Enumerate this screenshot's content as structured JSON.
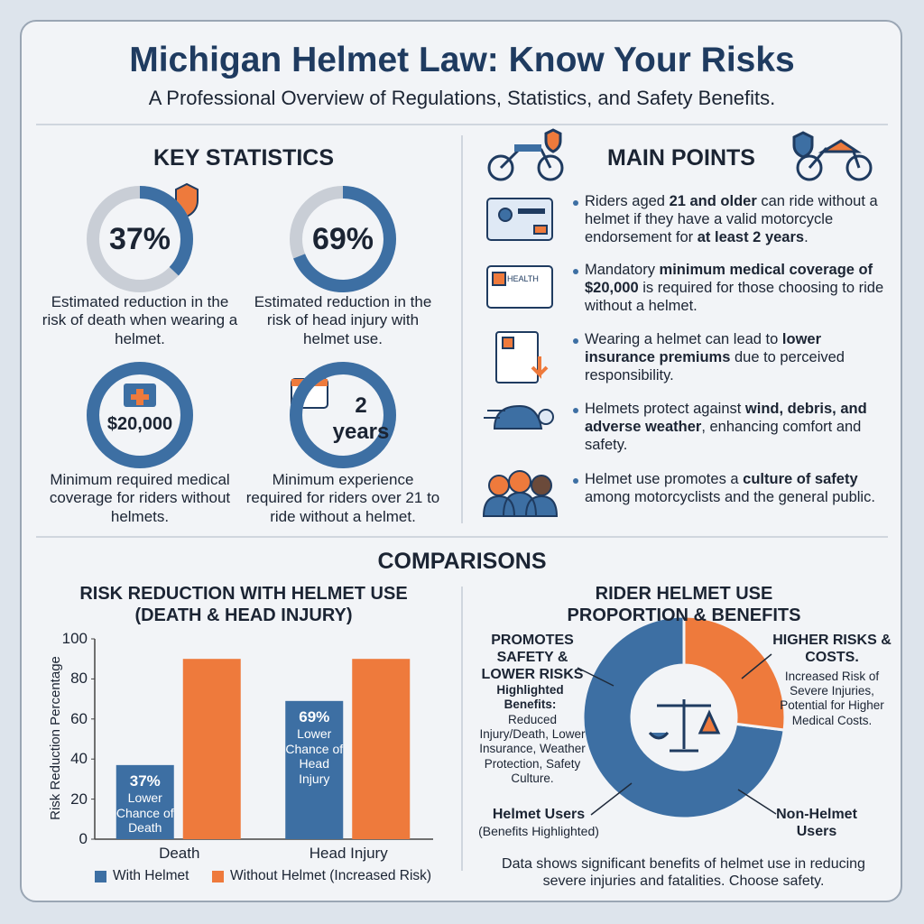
{
  "header": {
    "title": "Michigan Helmet Law: Know Your Risks",
    "subtitle": "A Professional Overview of Regulations, Statistics, and Safety Benefits."
  },
  "key_statistics": {
    "title": "KEY STATISTICS",
    "items": [
      {
        "figure": "37%",
        "percent": 37,
        "caption": "Estimated reduction in the risk of death when wearing a helmet."
      },
      {
        "figure": "69%",
        "percent": 69,
        "caption": "Estimated reduction in the risk of head injury with helmet use."
      },
      {
        "figure": "$20,000",
        "caption": "Minimum required medical coverage for riders without helmets."
      },
      {
        "figure": "2 years",
        "caption": "Minimum experience required for riders over 21 to ride without a helmet."
      }
    ]
  },
  "main_points": {
    "title": "MAIN POINTS",
    "items": [
      [
        "Riders aged ",
        "21 and older",
        " can ride without a helmet if they have a valid motorcycle endorsement for ",
        "at least 2 years",
        "."
      ],
      [
        "Mandatory ",
        "minimum medical coverage of $20,000",
        " is required for those choosing to ride without a helmet."
      ],
      [
        "Wearing a helmet can lead to ",
        "lower insurance premiums",
        " due to perceived responsibility."
      ],
      [
        "Helmets protect against ",
        "wind, debris, and adverse weather",
        ", enhancing comfort and safety."
      ],
      [
        "Helmet use promotes a ",
        "culture of safety",
        " among motorcyclists and the general public."
      ]
    ]
  },
  "comparisons": {
    "title": "COMPARISONS"
  },
  "chart_data": [
    {
      "type": "bar",
      "title": "RISK REDUCTION WITH HELMET USE (DEATH & HEAD INJURY)",
      "ylabel": "Risk Reduction Percentage",
      "categories": [
        "Death",
        "Head Injury"
      ],
      "series": [
        {
          "name": "With Helmet",
          "color": "#3d6fa3",
          "values": [
            37,
            69
          ],
          "value_labels": [
            "37%",
            "69%"
          ],
          "annotations": [
            "Lower Chance of Death",
            "Lower Chance of Head Injury"
          ]
        },
        {
          "name": "Without Helmet (Increased Risk)",
          "color": "#ee7a3c",
          "values": [
            90,
            90
          ]
        }
      ],
      "ylim": [
        0,
        100
      ],
      "yticks": [
        0,
        20,
        40,
        60,
        80,
        100
      ],
      "legend": "bottom"
    },
    {
      "type": "donut",
      "title": "RIDER HELMET USE PROPORTION & BENEFITS",
      "categories": [
        "Helmet Users",
        "Non-Helmet Users"
      ],
      "values": [
        73,
        27
      ],
      "colors": [
        "#3d6fa3",
        "#ee7a3c"
      ],
      "annotations": [
        {
          "heading": "PROMOTES SAFETY & LOWER RISKS",
          "subheading": "Highlighted Benefits:",
          "text": "Reduced Injury/Death, Lower Insurance, Weather Protection, Safety Culture."
        },
        {
          "heading": "HIGHER RISKS & COSTS.",
          "text": "Increased Risk of Severe Injuries, Potential for Higher Medical Costs."
        }
      ],
      "helmet_note": "(Benefits Highlighted)",
      "footnote": "Data shows significant benefits of helmet use in reducing severe injuries and fatalities. Choose safety."
    }
  ]
}
